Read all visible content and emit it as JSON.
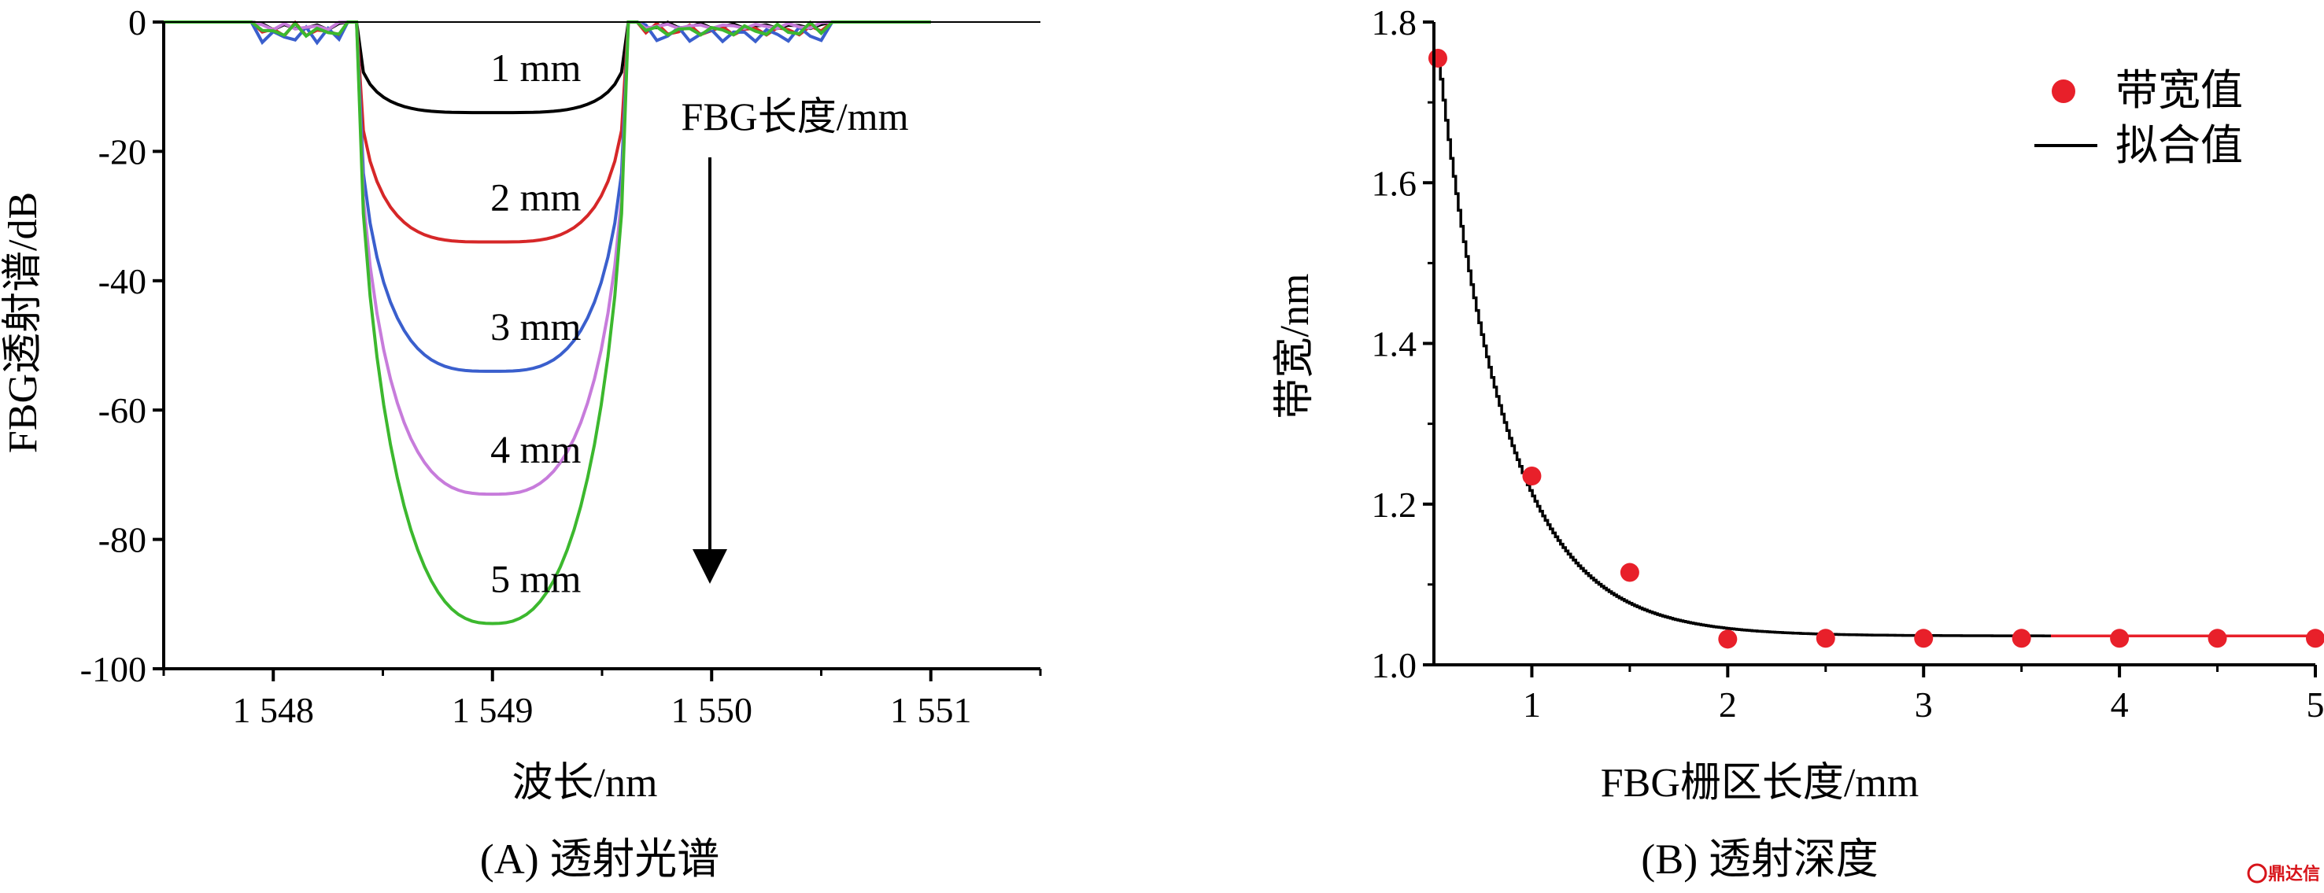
{
  "chart_data": [
    {
      "type": "line",
      "caption": "(A) 透射光谱",
      "xlabel": "波长/nm",
      "ylabel": "FBG透射谱/dB",
      "xlim": [
        1547.5,
        1551.5
      ],
      "ylim": [
        -100,
        0
      ],
      "xticks": [
        1548,
        1549,
        1550,
        1551
      ],
      "xtick_labels": [
        "1 548",
        "1 549",
        "1 550",
        "1 551"
      ],
      "yticks": [
        0,
        -20,
        -40,
        -60,
        -80,
        -100
      ],
      "ytick_labels": [
        "0",
        "-20",
        "-40",
        "-60",
        "-80",
        "-100"
      ],
      "annotation": "FBG长度/mm",
      "series": [
        {
          "name": "1 mm",
          "color": "#000000",
          "depth": -14
        },
        {
          "name": "2 mm",
          "color": "#d62728",
          "depth": -34
        },
        {
          "name": "3 mm",
          "color": "#3a5fcd",
          "depth": -54
        },
        {
          "name": "4 mm",
          "color": "#c77cdb",
          "depth": -73
        },
        {
          "name": "5 mm",
          "color": "#3cb82e",
          "depth": -93
        }
      ]
    },
    {
      "type": "scatter",
      "caption": "(B) 透射深度",
      "xlabel": "FBG栅区长度/mm",
      "ylabel": "带宽/nm",
      "xlim": [
        0.5,
        5
      ],
      "ylim": [
        1.0,
        1.8
      ],
      "xticks": [
        1,
        2,
        3,
        4,
        5
      ],
      "xtick_labels": [
        "1",
        "2",
        "3",
        "4",
        "5"
      ],
      "yticks": [
        1.0,
        1.2,
        1.4,
        1.6,
        1.8
      ],
      "ytick_labels": [
        "1.0",
        "1.2",
        "1.4",
        "1.6",
        "1.8"
      ],
      "legend": {
        "placement": "top-right",
        "entries": [
          "带宽值",
          "拟合值"
        ]
      },
      "points": [
        {
          "x": 0.52,
          "y": 1.755
        },
        {
          "x": 1.0,
          "y": 1.235
        },
        {
          "x": 1.5,
          "y": 1.115
        },
        {
          "x": 2.0,
          "y": 1.032
        },
        {
          "x": 2.5,
          "y": 1.033
        },
        {
          "x": 3.0,
          "y": 1.033
        },
        {
          "x": 3.5,
          "y": 1.033
        },
        {
          "x": 4.0,
          "y": 1.033
        },
        {
          "x": 4.5,
          "y": 1.033
        },
        {
          "x": 5.0,
          "y": 1.033
        }
      ],
      "point_color": "#e8202a",
      "fit_color": "#000000"
    }
  ],
  "watermark": "鼎达信"
}
